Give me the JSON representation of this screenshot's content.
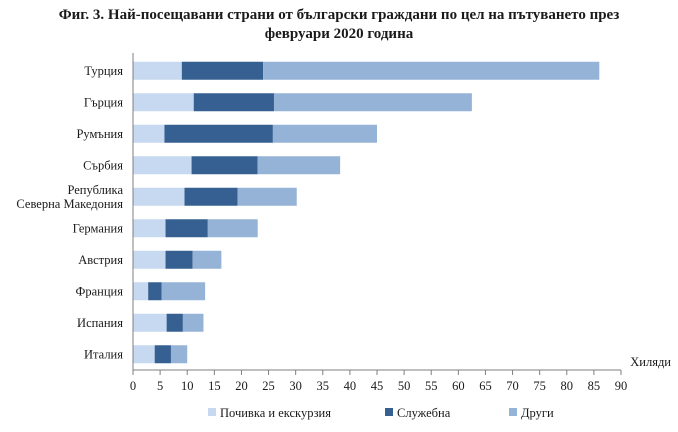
{
  "chart_data": {
    "type": "bar",
    "orientation": "horizontal",
    "stacked": true,
    "title_lines": [
      "Фиг. 3. Най-посещавани страни от български граждани по цел на пътуването през",
      "февруари 2020 година"
    ],
    "xunit": "Хиляди",
    "xlim": [
      0,
      90
    ],
    "xticks": [
      0,
      5,
      10,
      15,
      20,
      25,
      30,
      35,
      40,
      45,
      50,
      55,
      60,
      65,
      70,
      75,
      80,
      85,
      90
    ],
    "legend_position": "bottom",
    "categories": [
      [
        "Турция"
      ],
      [
        "Гърция"
      ],
      [
        "Румъния"
      ],
      [
        "Сърбия"
      ],
      [
        "Република",
        "Северна Македония"
      ],
      [
        "Германия"
      ],
      [
        "Австрия"
      ],
      [
        "Франция"
      ],
      [
        "Испания"
      ],
      [
        "Италия"
      ]
    ],
    "series": [
      {
        "name": "Почивка и екскурзия",
        "color": "#c6d9f1",
        "values": [
          9.0,
          11.2,
          5.8,
          10.8,
          9.5,
          6.0,
          6.0,
          2.8,
          6.2,
          4.0
        ]
      },
      {
        "name": "Служебна",
        "color": "#376092",
        "values": [
          15.0,
          14.8,
          20.0,
          12.2,
          9.8,
          7.8,
          5.0,
          2.5,
          3.0,
          3.0
        ]
      },
      {
        "name": "Други",
        "color": "#95b3d7",
        "values": [
          62.0,
          36.5,
          19.2,
          15.2,
          10.9,
          9.2,
          5.3,
          8.0,
          3.8,
          3.0
        ]
      }
    ]
  }
}
